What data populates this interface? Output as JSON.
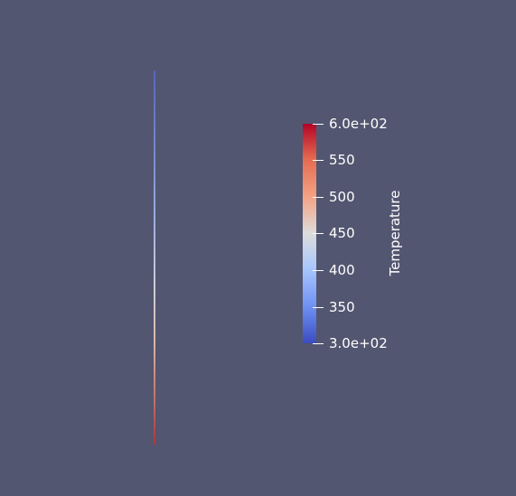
{
  "scene": {
    "background_color": "#535670",
    "object": "line-object"
  },
  "colorbar": {
    "title": "Temperature",
    "range": [
      300,
      600
    ],
    "colormap": "coolwarm",
    "colors": {
      "top": "#b40426",
      "middle": "#dddcdc",
      "bottom": "#3b4cc0"
    },
    "ticks": [
      {
        "value": 600,
        "label": "6.0e+02"
      },
      {
        "value": 550,
        "label": "550"
      },
      {
        "value": 500,
        "label": "500"
      },
      {
        "value": 450,
        "label": "450"
      },
      {
        "value": 400,
        "label": "400"
      },
      {
        "value": 350,
        "label": "350"
      },
      {
        "value": 300,
        "label": "3.0e+02"
      }
    ]
  }
}
